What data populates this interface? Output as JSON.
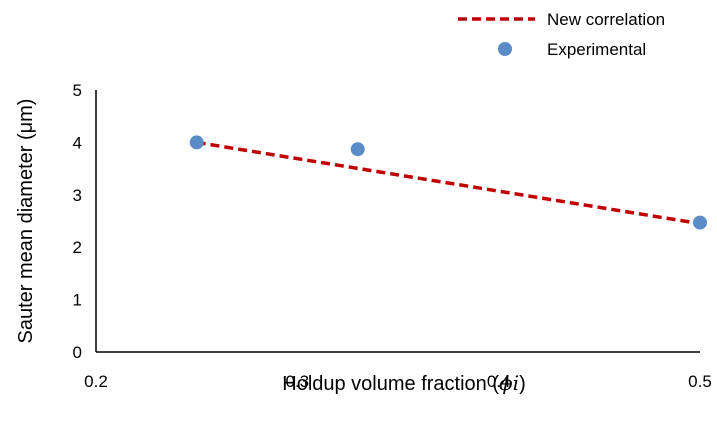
{
  "chart_data": {
    "type": "scatter",
    "xlabel": "Holdup volume fraction (",
    "xlabel_symbol": "ϕi",
    "xlabel_close": ")",
    "ylabel": "Sauter mean diameter (μm)",
    "xlim": [
      0.2,
      0.5
    ],
    "ylim": [
      0,
      5
    ],
    "x_ticks": [
      "0.2",
      "0.3",
      "0.4",
      "0.5"
    ],
    "y_ticks": [
      "0",
      "1",
      "2",
      "3",
      "4",
      "5"
    ],
    "grid": false,
    "legend_position": "top-right",
    "series": [
      {
        "name": "New correlation",
        "kind": "line",
        "style": "dashed",
        "color": "#C00000",
        "x": [
          0.25,
          0.5
        ],
        "y": [
          4.0,
          2.45
        ]
      },
      {
        "name": "Experimental",
        "kind": "marker",
        "color": "#5B8CC8",
        "x": [
          0.25,
          0.33,
          0.5
        ],
        "y": [
          4.0,
          3.87,
          2.47
        ]
      }
    ]
  }
}
